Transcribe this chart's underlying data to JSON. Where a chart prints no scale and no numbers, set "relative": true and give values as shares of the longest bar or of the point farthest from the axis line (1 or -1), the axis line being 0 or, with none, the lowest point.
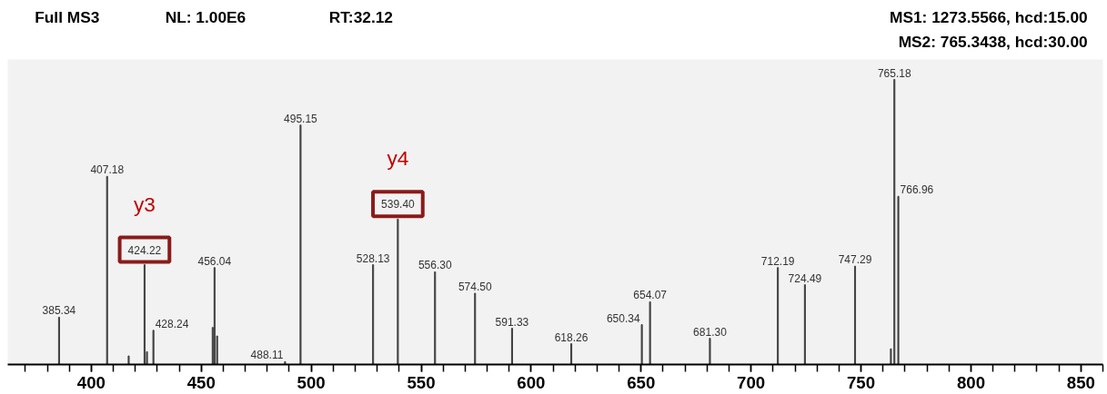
{
  "chart_data": {
    "type": "bar",
    "relative": true,
    "title": "Full MS3",
    "x": [
      385.34,
      407.18,
      417,
      424.22,
      425.3,
      428.24,
      455.2,
      456.04,
      457.2,
      488.11,
      495.15,
      528.13,
      539.4,
      556.3,
      574.5,
      591.33,
      618.26,
      650.34,
      654.07,
      681.3,
      712.19,
      724.49,
      747.29,
      763.6,
      765.18,
      766.96
    ],
    "values": [
      0.166,
      0.66,
      0.03,
      0.35,
      0.045,
      0.12,
      0.13,
      0.34,
      0.1,
      0.01,
      0.84,
      0.35,
      0.51,
      0.325,
      0.25,
      0.127,
      0.073,
      0.14,
      0.22,
      0.092,
      0.34,
      0.28,
      0.345,
      0.055,
      1,
      0.59
    ],
    "color": "#404040",
    "xlim": [
      362,
      860
    ],
    "xticks": [
      400,
      450,
      500,
      550,
      600,
      650,
      700,
      750,
      800,
      850
    ],
    "annotations": [
      "NL: 1.00E6",
      "RT:32.12",
      "MS1: 1273.5566, hcd:15.00",
      "MS2: 765.3438, hcd:30.00",
      {
        "text": "385.34",
        "x": 385.34,
        "y": 0.166
      },
      {
        "text": "407.18",
        "x": 407.18,
        "y": 0.66
      },
      {
        "text": "424.22",
        "x": 424.22,
        "y": 0.35
      },
      {
        "text": "428.24",
        "x": 428.24,
        "y": 0.12
      },
      {
        "text": "456.04",
        "x": 456.04,
        "y": 0.34
      },
      {
        "text": "488.11",
        "x": 488.11,
        "y": 0.01
      },
      {
        "text": "495.15",
        "x": 495.15,
        "y": 0.84
      },
      {
        "text": "528.13",
        "x": 528.13,
        "y": 0.35
      },
      {
        "text": "539.40",
        "x": 539.4,
        "y": 0.51
      },
      {
        "text": "556.30",
        "x": 556.3,
        "y": 0.325
      },
      {
        "text": "574.50",
        "x": 574.5,
        "y": 0.25
      },
      {
        "text": "591.33",
        "x": 591.33,
        "y": 0.127
      },
      {
        "text": "618.26",
        "x": 618.26,
        "y": 0.073
      },
      {
        "text": "650.34",
        "x": 650.34,
        "y": 0.14
      },
      {
        "text": "654.07",
        "x": 654.07,
        "y": 0.22
      },
      {
        "text": "681.30",
        "x": 681.3,
        "y": 0.092
      },
      {
        "text": "712.19",
        "x": 712.19,
        "y": 0.34
      },
      {
        "text": "724.49",
        "x": 724.49,
        "y": 0.28
      },
      {
        "text": "747.29",
        "x": 747.29,
        "y": 0.345
      },
      {
        "text": "765.18",
        "x": 765.18,
        "y": 1
      },
      {
        "text": "766.96",
        "x": 766.96,
        "y": 0.59
      },
      {
        "text": "y3",
        "x": 424.22,
        "y": 0.35
      },
      {
        "text": "y4",
        "x": 539.4,
        "y": 0.51
      }
    ]
  }
}
